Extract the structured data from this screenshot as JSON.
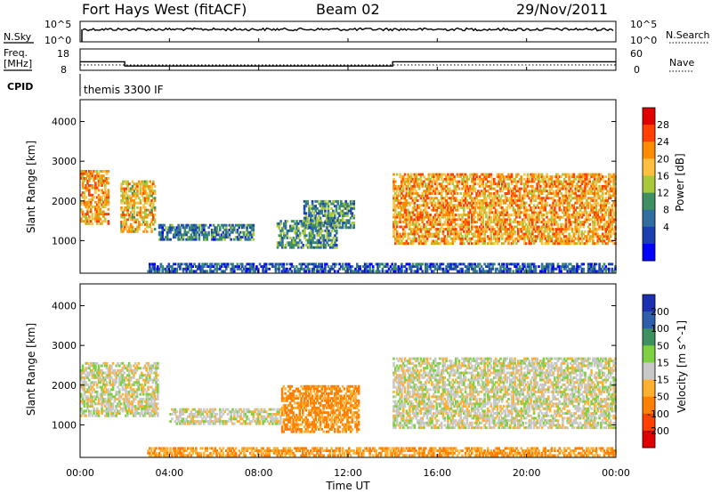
{
  "header": {
    "station": "Fort Hays West (fitACF)",
    "beam": "Beam 02",
    "date": "29/Nov/2011"
  },
  "noise_panel": {
    "left_label": "N.Sky",
    "right_label": "N.Search",
    "left_ticks": [
      "10^5",
      "10^0"
    ],
    "right_ticks": [
      "10^5",
      "10^0"
    ]
  },
  "freq_panel": {
    "left_label_line1": "Freq.",
    "left_label_line2": "[MHz]",
    "left_ticks": [
      "18",
      "8"
    ],
    "right_ticks": [
      "60",
      "0"
    ],
    "right_label": "Nave",
    "cpid_label": "CPID",
    "program_text": "themis 3300 IF"
  },
  "axes": {
    "ylabel": "Slant Range [km]",
    "xlabel": "Time UT",
    "x_ticks": [
      "00:00",
      "04:00",
      "08:00",
      "12:00",
      "16:00",
      "20:00",
      "00:00"
    ],
    "y_ticks": [
      "4000",
      "3000",
      "2000",
      "1000"
    ]
  },
  "power_colorbar": {
    "label": "Power [dB]",
    "ticks": [
      "28",
      "24",
      "20",
      "16",
      "12",
      "8",
      "4"
    ],
    "colors": [
      "#e00000",
      "#ff4000",
      "#ff8c00",
      "#ffc040",
      "#aac83c",
      "#3e9060",
      "#2e6fa0",
      "#1c3fb0",
      "#0000ff"
    ]
  },
  "velocity_colorbar": {
    "label": "Velocity [m s^-1]",
    "ticks": [
      "200",
      "100",
      "50",
      "15",
      "-15",
      "-50",
      "-100",
      "-200"
    ],
    "colors": [
      "#1c2fb0",
      "#2f5faa",
      "#3e9060",
      "#7ed040",
      "#c8c8c8",
      "#ffb030",
      "#ff8000",
      "#ff4000",
      "#e00000"
    ]
  },
  "chart_data": {
    "type": "heatmap",
    "title": "Fort Hays West (fitACF)",
    "xlabel": "Time UT",
    "ylabel": "Slant Range [km]",
    "xlim": [
      "00:00",
      "24:00"
    ],
    "ylim": [
      180,
      4550
    ],
    "frequency_MHz": [
      {
        "start": "00:00",
        "end": "02:00",
        "freq": 12
      },
      {
        "start": "02:00",
        "end": "14:00",
        "freq": 10
      },
      {
        "start": "14:00",
        "end": "24:00",
        "freq": 12
      }
    ],
    "power_echo_regions": [
      {
        "start_h": 0.0,
        "end_h": 1.3,
        "range_km": [
          1400,
          2800
        ],
        "power_dB": 22
      },
      {
        "start_h": 1.8,
        "end_h": 3.4,
        "range_km": [
          1200,
          2500
        ],
        "power_dB": 20
      },
      {
        "start_h": 3.5,
        "end_h": 7.8,
        "range_km": [
          1000,
          1400
        ],
        "power_dB": 10
      },
      {
        "start_h": 8.8,
        "end_h": 11.5,
        "range_km": [
          800,
          1500
        ],
        "power_dB": 12
      },
      {
        "start_h": 10.0,
        "end_h": 12.3,
        "range_km": [
          1300,
          2000
        ],
        "power_dB": 12
      },
      {
        "start_h": 14.0,
        "end_h": 24.0,
        "range_km": [
          900,
          2700
        ],
        "power_dB": 22
      },
      {
        "start_h": 3.0,
        "end_h": 24.0,
        "range_km": [
          200,
          450
        ],
        "power_dB": 8
      }
    ],
    "velocity_echo_regions": [
      {
        "start_h": 0.0,
        "end_h": 3.5,
        "range_km": [
          1200,
          2600
        ],
        "velocity_ms": 0
      },
      {
        "start_h": 4.0,
        "end_h": 9.0,
        "range_km": [
          1000,
          1400
        ],
        "velocity_ms": 0
      },
      {
        "start_h": 9.0,
        "end_h": 12.5,
        "range_km": [
          800,
          2000
        ],
        "velocity_ms": -60
      },
      {
        "start_h": 14.0,
        "end_h": 24.0,
        "range_km": [
          900,
          2700
        ],
        "velocity_ms": 0
      },
      {
        "start_h": 3.0,
        "end_h": 24.0,
        "range_km": [
          200,
          450
        ],
        "velocity_ms": -50
      }
    ]
  }
}
